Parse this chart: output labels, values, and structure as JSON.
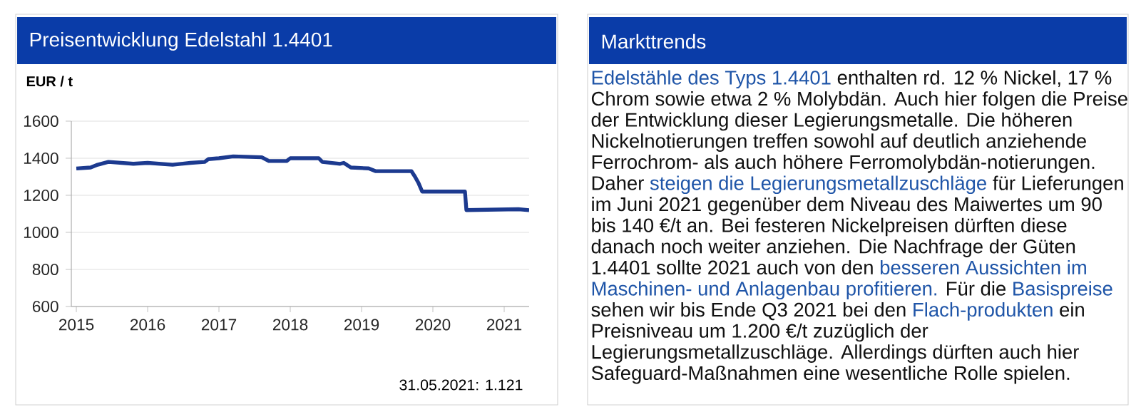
{
  "chart_data": [
    {
      "type": "line",
      "title": "Preisentwicklung Edelstahl 1.4401",
      "ylabel": "EUR / t",
      "x": [
        2015.0,
        2015.2,
        2015.3,
        2015.45,
        2015.8,
        2016.0,
        2016.35,
        2016.6,
        2016.8,
        2016.85,
        2017.0,
        2017.2,
        2017.6,
        2017.7,
        2017.95,
        2018.0,
        2018.4,
        2018.45,
        2018.7,
        2018.75,
        2018.85,
        2019.1,
        2019.2,
        2019.7,
        2019.75,
        2019.8,
        2019.85,
        2020.45,
        2020.47,
        2021.2,
        2021.35
      ],
      "series": [
        {
          "color": "#1c3a8f",
          "values": [
            1345,
            1350,
            1365,
            1380,
            1370,
            1375,
            1365,
            1375,
            1380,
            1395,
            1400,
            1410,
            1405,
            1385,
            1385,
            1400,
            1400,
            1380,
            1370,
            1375,
            1350,
            1345,
            1330,
            1330,
            1300,
            1265,
            1220,
            1220,
            1120,
            1125,
            1120
          ]
        }
      ],
      "xlim": [
        2014.93,
        2021.35
      ],
      "ylim": [
        600,
        1600
      ],
      "xticks": [
        2015,
        2016,
        2017,
        2018,
        2019,
        2020,
        2021
      ],
      "yticks": [
        600,
        800,
        1000,
        1200,
        1400,
        1600
      ],
      "grid": "y",
      "annotations": [
        "31.05.2021: 1.121"
      ]
    },
    {
      "type": "other",
      "title": "Markttrends",
      "annotations": [
        "Edelstähle des Typs 1.4401",
        "enthalten rd. 12 % Nickel, 17 % Chrom sowie etwa 2 % Molybdän. Auch hier folgen die Preise der Entwicklung dieser Legierungsmetalle. Die höheren Nickelnotierungen treffen sowohl auf deutlich anziehende Ferrochrom- als auch höhere Ferromolybdän-notierungen. Daher",
        "steigen die Legierungsmetallzuschläge",
        "für Lieferungen im Juni 2021 gegenüber dem Niveau des Maiwertes um 90 bis 140 €/t an. Bei festeren Nickelpreisen dürften diese danach noch weiter anziehen. Die Nachfrage der Güten 1.4401 sollte 2021 auch von den",
        "besseren Aussichten im Maschinen- und Anlagenbau profitieren.",
        "Für die",
        "Basispreise",
        "sehen wir bis Ende Q3 2021 bei den",
        "Flach-produkten",
        "ein Preisniveau um 1.200 €/t zuzüglich der Legierungsmetallzuschläge. Allerdings dürften auch hier Safeguard-Maßnahmen eine wesentliche Rolle spielen."
      ]
    }
  ]
}
